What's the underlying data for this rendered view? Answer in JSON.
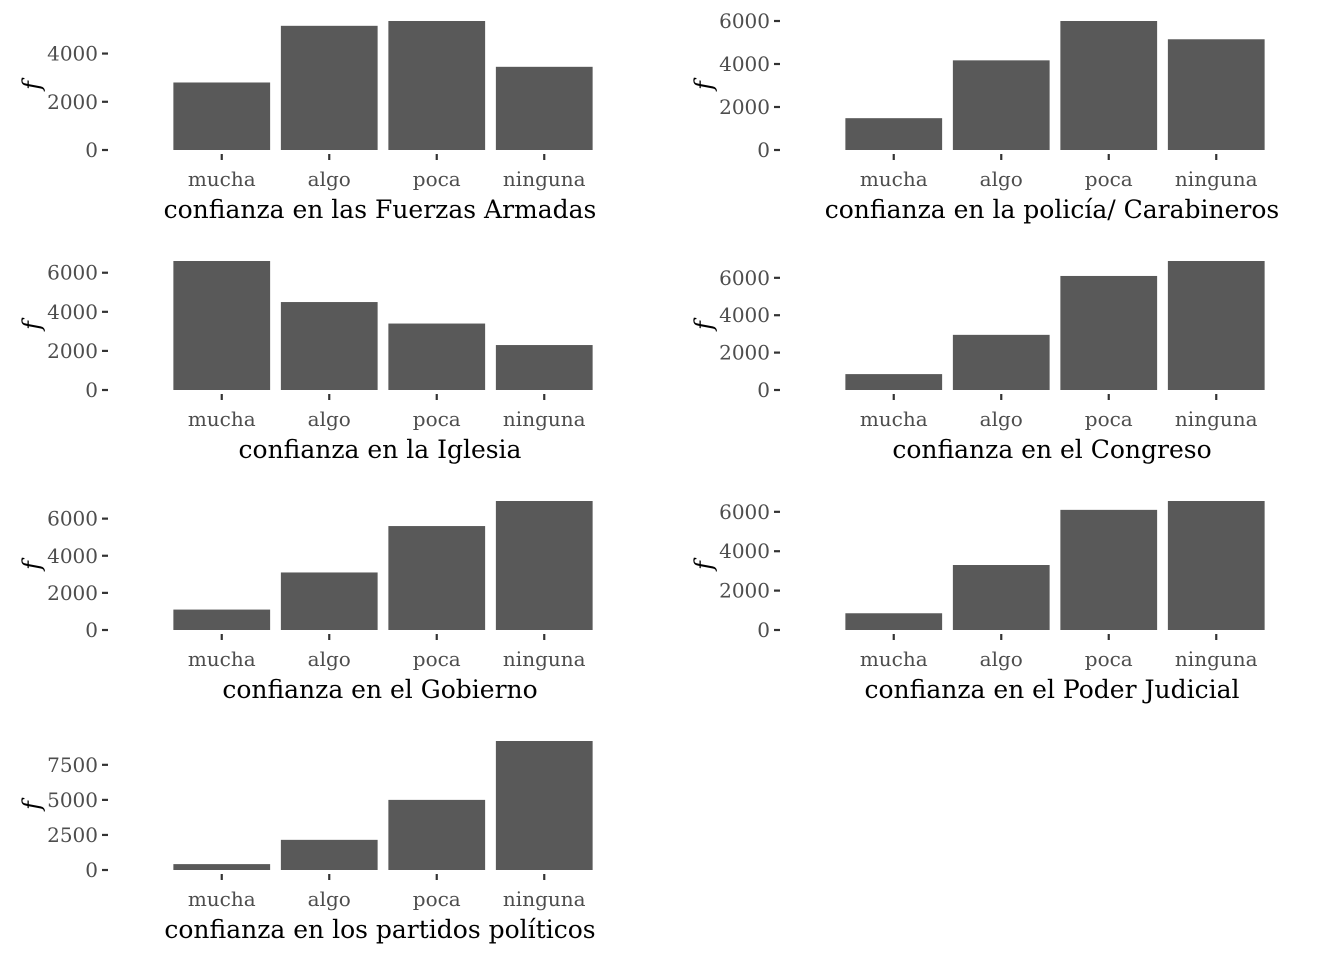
{
  "figure": {
    "bar_color": "#595959",
    "tick_color": "#333333",
    "text_color": "#4d4d4d",
    "background": "#ffffff"
  },
  "chart_data": [
    {
      "type": "bar",
      "categories": [
        "mucha",
        "algo",
        "poca",
        "ninguna"
      ],
      "values": [
        2800,
        5150,
        5350,
        3450
      ],
      "xlabel": "confianza en las Fuerzas Armadas",
      "ylabel": "f",
      "ylim": [
        0,
        5350
      ],
      "yticks": [
        0,
        2000,
        4000
      ],
      "grid": false
    },
    {
      "type": "bar",
      "categories": [
        "mucha",
        "algo",
        "poca",
        "ninguna"
      ],
      "values": [
        1480,
        4170,
        6000,
        5150
      ],
      "xlabel": "confianza en la policía/ Carabineros",
      "ylabel": "f",
      "ylim": [
        0,
        6000
      ],
      "yticks": [
        0,
        2000,
        4000,
        6000
      ],
      "grid": false
    },
    {
      "type": "bar",
      "categories": [
        "mucha",
        "algo",
        "poca",
        "ninguna"
      ],
      "values": [
        6600,
        4500,
        3400,
        2300
      ],
      "xlabel": "confianza en la Iglesia",
      "ylabel": "f",
      "ylim": [
        0,
        6600
      ],
      "yticks": [
        0,
        2000,
        4000,
        6000
      ],
      "grid": false
    },
    {
      "type": "bar",
      "categories": [
        "mucha",
        "algo",
        "poca",
        "ninguna"
      ],
      "values": [
        850,
        2950,
        6100,
        6900
      ],
      "xlabel": "confianza en el Congreso",
      "ylabel": "f",
      "ylim": [
        0,
        6900
      ],
      "yticks": [
        0,
        2000,
        4000,
        6000
      ],
      "grid": false
    },
    {
      "type": "bar",
      "categories": [
        "mucha",
        "algo",
        "poca",
        "ninguna"
      ],
      "values": [
        1100,
        3100,
        5600,
        6950
      ],
      "xlabel": "confianza en el Gobierno",
      "ylabel": "f",
      "ylim": [
        0,
        6950
      ],
      "yticks": [
        0,
        2000,
        4000,
        6000
      ],
      "grid": false
    },
    {
      "type": "bar",
      "categories": [
        "mucha",
        "algo",
        "poca",
        "ninguna"
      ],
      "values": [
        850,
        3300,
        6100,
        6550
      ],
      "xlabel": "confianza en el Poder Judicial",
      "ylabel": "f",
      "ylim": [
        0,
        6550
      ],
      "yticks": [
        0,
        2000,
        4000,
        6000
      ],
      "grid": false
    },
    {
      "type": "bar",
      "categories": [
        "mucha",
        "algo",
        "poca",
        "ninguna"
      ],
      "values": [
        420,
        2150,
        5000,
        9200
      ],
      "xlabel": "confianza en los partidos políticos",
      "ylabel": "f",
      "ylim": [
        0,
        9200
      ],
      "yticks": [
        0,
        2500,
        5000,
        7500
      ],
      "grid": false
    }
  ]
}
